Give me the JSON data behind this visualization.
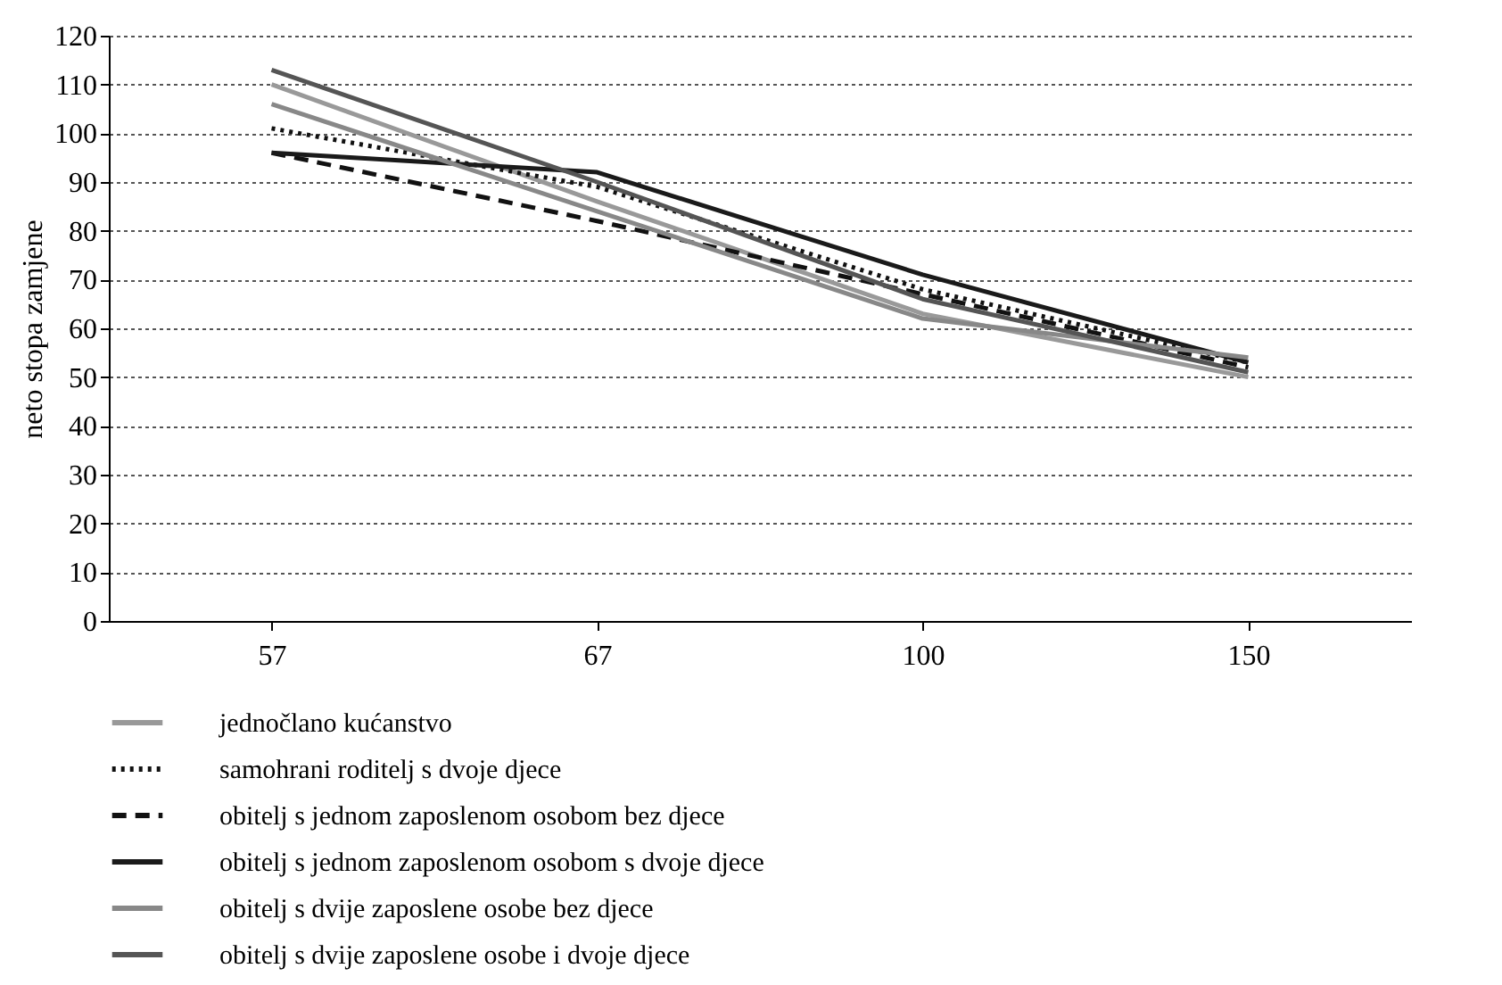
{
  "chart_data": {
    "type": "line",
    "ylabel": "neto stopa zamjene",
    "categories": [
      "57",
      "67",
      "100",
      "150"
    ],
    "ylim": [
      0,
      120
    ],
    "yticks": [
      0,
      10,
      20,
      30,
      40,
      50,
      60,
      70,
      80,
      90,
      100,
      110,
      120
    ],
    "grid": "y",
    "legend": "bottom",
    "marker": "none",
    "series": [
      {
        "name": "jednočlano kućanstvo",
        "color": "#999999",
        "line_style": "solid",
        "values": [
          110,
          86,
          63,
          50
        ]
      },
      {
        "name": "samohrani roditelj s dvoje djece",
        "color": "#111111",
        "line_style": "dotted",
        "values": [
          101,
          89,
          68,
          53
        ]
      },
      {
        "name": "obitelj s jednom zaposlenom osobom bez djece",
        "color": "#111111",
        "line_style": "dashed",
        "values": [
          96,
          82,
          67,
          52
        ]
      },
      {
        "name": "obitelj s jednom zaposlenom osobom s dvoje djece",
        "color": "#1a1a1a",
        "line_style": "solid",
        "values": [
          96,
          92,
          71,
          53
        ]
      },
      {
        "name": "obitelj s dvije zaposlene osobe bez djece",
        "color": "#888888",
        "line_style": "solid",
        "values": [
          106,
          84,
          62,
          54
        ]
      },
      {
        "name": "obitelj s dvije zaposlene osobe i dvoje djece",
        "color": "#555555",
        "line_style": "solid",
        "values": [
          113,
          90,
          66,
          51
        ]
      }
    ]
  }
}
